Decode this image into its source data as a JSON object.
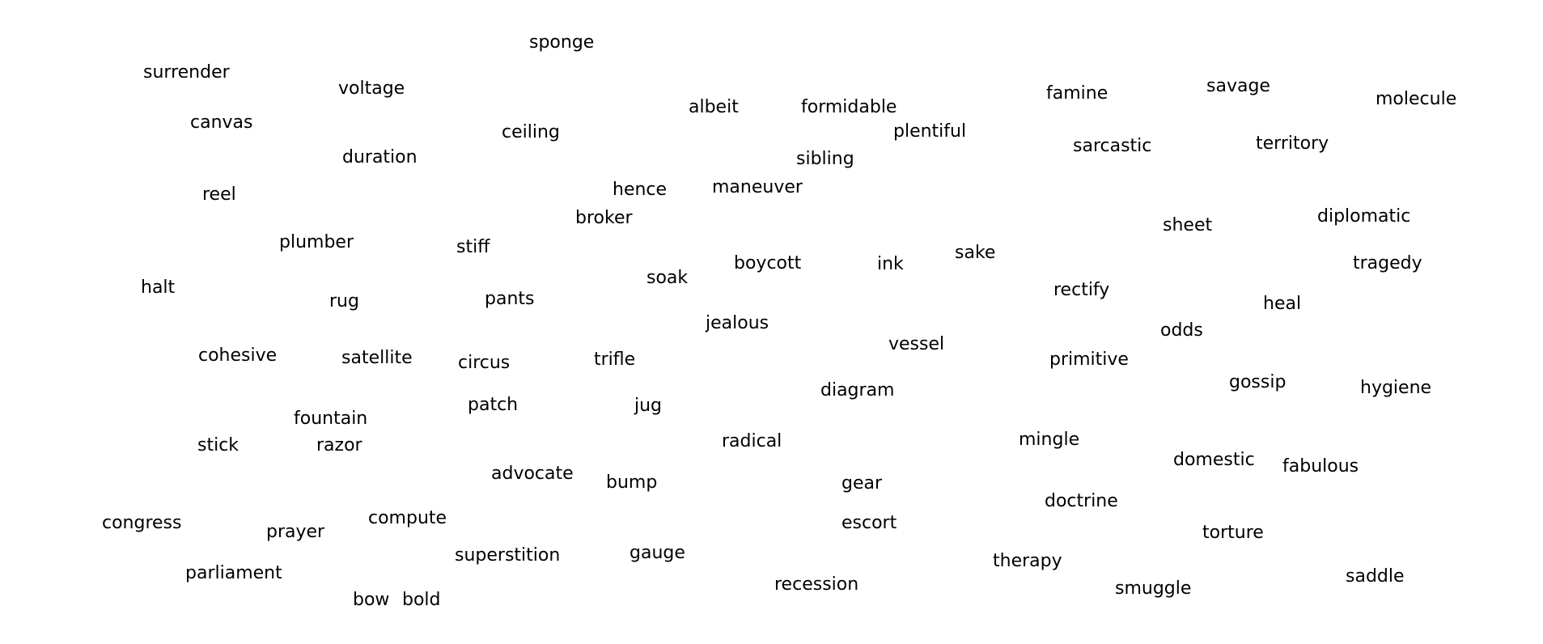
{
  "words": [
    "sponge",
    "surrender",
    "voltage",
    "albeit",
    "formidable",
    "famine",
    "savage",
    "molecule",
    "canvas",
    "ceiling",
    "plentiful",
    "sarcastic",
    "territory",
    "duration",
    "sibling",
    "reel",
    "hence",
    "maneuver",
    "broker",
    "sheet",
    "diplomatic",
    "plumber",
    "stiff",
    "boycott",
    "ink",
    "sake",
    "tragedy",
    "halt",
    "rug",
    "pants",
    "soak",
    "rectify",
    "heal",
    "jealous",
    "odds",
    "vessel",
    "cohesive",
    "satellite",
    "circus",
    "trifle",
    "primitive",
    "gossip",
    "hygiene",
    "diagram",
    "patch",
    "jug",
    "fountain",
    "stick",
    "razor",
    "radical",
    "mingle",
    "domestic",
    "fabulous",
    "advocate",
    "bump",
    "gear",
    "doctrine",
    "congress",
    "prayer",
    "compute",
    "escort",
    "torture",
    "superstition",
    "gauge",
    "therapy",
    "parliament",
    "recession",
    "smuggle",
    "saddle",
    "bow",
    "bold"
  ]
}
